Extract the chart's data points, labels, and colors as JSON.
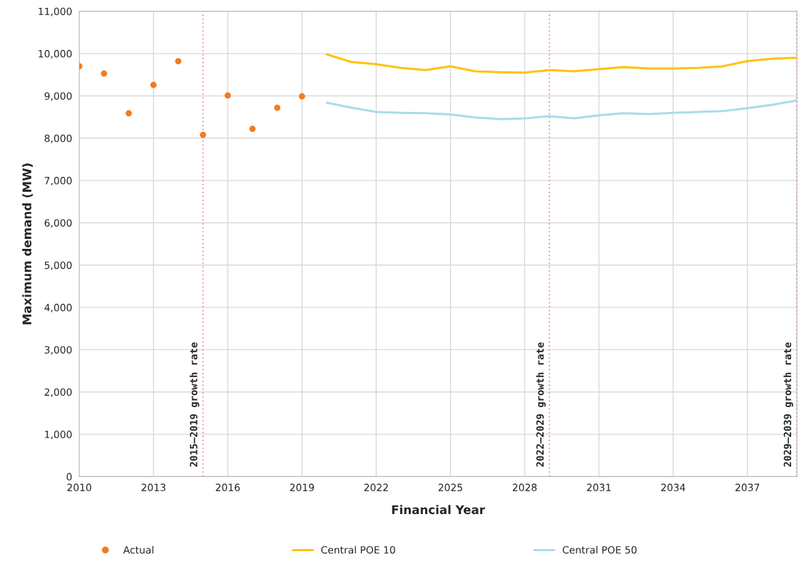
{
  "chart_data": {
    "type": "line",
    "xlabel": "Financial Year",
    "ylabel": "Maximum demand (MW)",
    "xlim": [
      2010,
      2039
    ],
    "xticks": [
      2010,
      2013,
      2016,
      2019,
      2022,
      2025,
      2028,
      2031,
      2034,
      2037
    ],
    "ylim": [
      0,
      11000
    ],
    "yticks": [
      0,
      {
        "value": 1000,
        "label": "1,000"
      },
      {
        "value": 2000,
        "label": "2,000"
      },
      {
        "value": 3000,
        "label": "3,000"
      },
      {
        "value": 4000,
        "label": "4,000"
      },
      {
        "value": 5000,
        "label": "5,000"
      },
      {
        "value": 6000,
        "label": "6,000"
      },
      {
        "value": 7000,
        "label": "7,000"
      },
      {
        "value": 8000,
        "label": "8,000"
      },
      {
        "value": 9000,
        "label": "9,000"
      },
      {
        "value": 10000,
        "label": "10,000"
      },
      {
        "value": 11000,
        "label": "11,000"
      }
    ],
    "grid": true,
    "legend": "bottom",
    "series": [
      {
        "name": "Actual",
        "type": "scatter",
        "marker": "circle",
        "color": "#f47b20",
        "x": [
          2010,
          2011,
          2012,
          2013,
          2014,
          2015,
          2016,
          2017,
          2018,
          2019
        ],
        "values": [
          9700,
          9530,
          8590,
          9260,
          9820,
          8080,
          9010,
          8220,
          8720,
          8990
        ]
      },
      {
        "name": "Central POE 10",
        "color": "#ffc20e",
        "x": [
          2020,
          2021,
          2022,
          2023,
          2024,
          2025,
          2026,
          2027,
          2028,
          2029,
          2030,
          2031,
          2032,
          2033,
          2034,
          2035,
          2036,
          2037,
          2038,
          2039
        ],
        "values": [
          9980,
          9800,
          9750,
          9660,
          9610,
          9700,
          9580,
          9560,
          9550,
          9610,
          9580,
          9630,
          9680,
          9650,
          9650,
          9660,
          9700,
          9820,
          9880,
          9900
        ]
      },
      {
        "name": "Central POE 50",
        "color": "#a8dcea",
        "x": [
          2020,
          2021,
          2022,
          2023,
          2024,
          2025,
          2026,
          2027,
          2028,
          2029,
          2030,
          2031,
          2032,
          2033,
          2034,
          2035,
          2036,
          2037,
          2038,
          2039
        ],
        "values": [
          8840,
          8720,
          8620,
          8600,
          8590,
          8560,
          8490,
          8450,
          8470,
          8520,
          8470,
          8540,
          8590,
          8570,
          8600,
          8620,
          8640,
          8710,
          8790,
          8890
        ]
      }
    ],
    "ref_lines": [
      {
        "axis": "x",
        "value": 2015,
        "label": "2015–2019 growth rate",
        "color": "#f4a0a0",
        "line_style": "dotted"
      },
      {
        "axis": "x",
        "value": 2029,
        "label": "2022–2029 growth rate",
        "color": "#f4a0a0",
        "line_style": "dotted"
      },
      {
        "axis": "x",
        "value": 2039,
        "label": "2029–2039 growth rate",
        "color": "#f4a0a0",
        "line_style": "dotted"
      }
    ]
  }
}
